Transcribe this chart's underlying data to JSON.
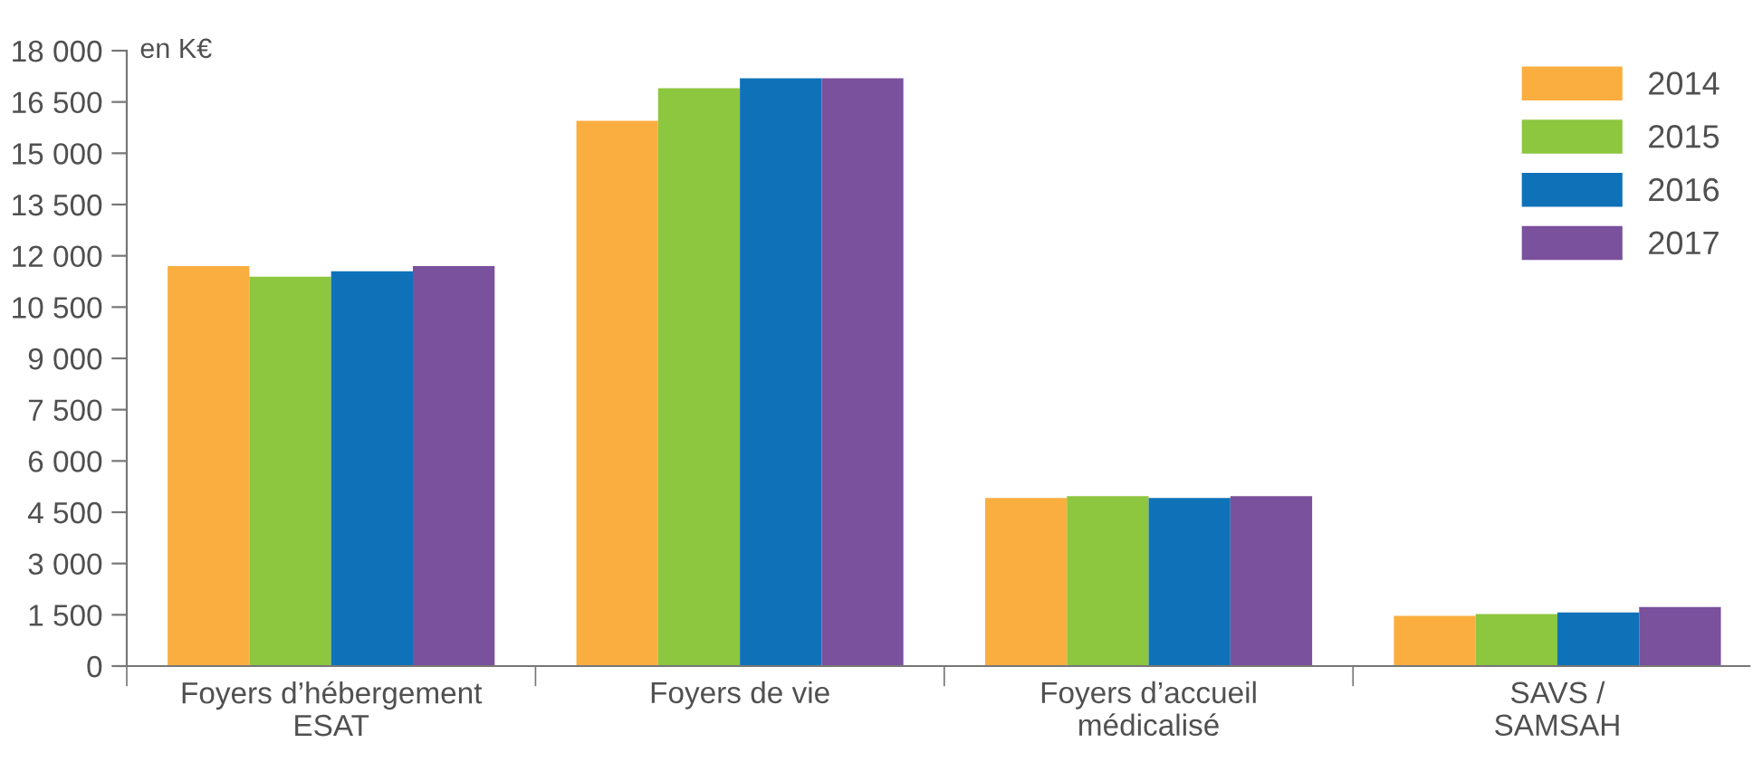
{
  "chart_data": {
    "type": "bar",
    "ylabel": "en K€",
    "categories": [
      "Foyers d’hébergement\nESAT",
      "Foyers de vie",
      "Foyers d’accueil\nmédicalisé",
      "SAVS /\nSAMSAH"
    ],
    "series": [
      {
        "name": "2014",
        "color": "#fbae40",
        "values": [
          11700,
          15950,
          4920,
          1470
        ]
      },
      {
        "name": "2015",
        "color": "#8dc63f",
        "values": [
          11390,
          16900,
          4970,
          1520
        ]
      },
      {
        "name": "2016",
        "color": "#0f72b9",
        "values": [
          11550,
          17190,
          4920,
          1570
        ]
      },
      {
        "name": "2017",
        "color": "#7a519d",
        "values": [
          11700,
          17190,
          4970,
          1730
        ]
      }
    ],
    "ylim": [
      0,
      18000
    ],
    "yticks": [
      {
        "value": 0,
        "label": "0"
      },
      {
        "value": 1500,
        "label": "1 500"
      },
      {
        "value": 3000,
        "label": "3 000"
      },
      {
        "value": 4500,
        "label": "4 500"
      },
      {
        "value": 6000,
        "label": "6 000"
      },
      {
        "value": 7500,
        "label": "7 500"
      },
      {
        "value": 9000,
        "label": "9 000"
      },
      {
        "value": 10500,
        "label": "10 500"
      },
      {
        "value": 12000,
        "label": "12 000"
      },
      {
        "value": 13500,
        "label": "13 500"
      },
      {
        "value": 15000,
        "label": "15 000"
      },
      {
        "value": 16500,
        "label": "16 500"
      },
      {
        "value": 18000,
        "label": "18 000"
      }
    ],
    "grid": false,
    "legend": "top right"
  }
}
